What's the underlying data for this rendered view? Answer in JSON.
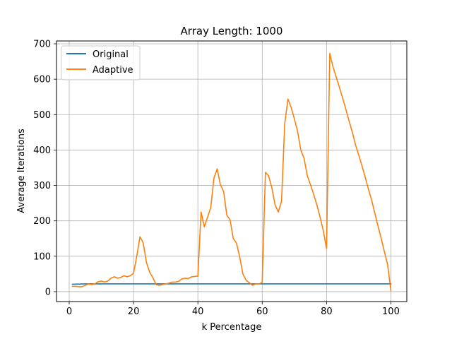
{
  "chart_data": {
    "type": "line",
    "title": "Array Length: 1000",
    "xlabel": "k Percentage",
    "ylabel": "Average Iterations",
    "xlim": [
      -3.95,
      104.95
    ],
    "ylim": [
      -28,
      708
    ],
    "xticks": [
      0,
      20,
      40,
      60,
      80,
      100
    ],
    "yticks": [
      0,
      100,
      200,
      300,
      400,
      500,
      600,
      700
    ],
    "grid": true,
    "legend_position": "top-left",
    "series": [
      {
        "name": "Original",
        "color": "#1f77b4",
        "x": [
          1,
          5,
          10,
          15,
          20,
          25,
          30,
          35,
          40,
          45,
          50,
          55,
          60,
          65,
          70,
          75,
          80,
          85,
          90,
          95,
          100
        ],
        "y": [
          21,
          22,
          22,
          22,
          22,
          22,
          22,
          22,
          22,
          22,
          22,
          22,
          22,
          22,
          22,
          22,
          22,
          22,
          22,
          22,
          22
        ]
      },
      {
        "name": "Adaptive",
        "color": "#ff7f0e",
        "x": [
          1,
          2,
          3,
          4,
          5,
          6,
          7,
          8,
          9,
          10,
          11,
          12,
          13,
          14,
          15,
          16,
          17,
          18,
          19,
          20,
          21,
          22,
          23,
          24,
          25,
          26,
          27,
          28,
          29,
          30,
          31,
          32,
          33,
          34,
          35,
          36,
          37,
          38,
          39,
          40,
          41,
          42,
          43,
          44,
          45,
          46,
          47,
          48,
          49,
          50,
          51,
          52,
          53,
          54,
          55,
          56,
          57,
          58,
          59,
          60,
          61,
          62,
          63,
          64,
          65,
          66,
          67,
          68,
          69,
          70,
          71,
          72,
          73,
          74,
          75,
          76,
          77,
          78,
          79,
          80,
          81,
          82,
          83,
          84,
          85,
          86,
          87,
          88,
          89,
          90,
          91,
          92,
          93,
          94,
          95,
          96,
          97,
          98,
          99,
          100
        ],
        "y": [
          15,
          15,
          14,
          14,
          18,
          22,
          20,
          22,
          28,
          30,
          27,
          30,
          38,
          42,
          38,
          40,
          45,
          42,
          45,
          52,
          100,
          155,
          138,
          83,
          55,
          40,
          20,
          18,
          20,
          22,
          24,
          27,
          27,
          29,
          36,
          38,
          37,
          42,
          43,
          44,
          225,
          183,
          210,
          237,
          321,
          347,
          302,
          283,
          216,
          203,
          150,
          137,
          98,
          50,
          32,
          25,
          18,
          22,
          22,
          26,
          337,
          327,
          293,
          245,
          225,
          255,
          474,
          544,
          520,
          488,
          453,
          400,
          377,
          328,
          302,
          275,
          245,
          210,
          172,
          122,
          673,
          635,
          606,
          577,
          547,
          515,
          482,
          451,
          415,
          386,
          356,
          324,
          290,
          259,
          222,
          185,
          150,
          112,
          76,
          3
        ]
      }
    ]
  }
}
